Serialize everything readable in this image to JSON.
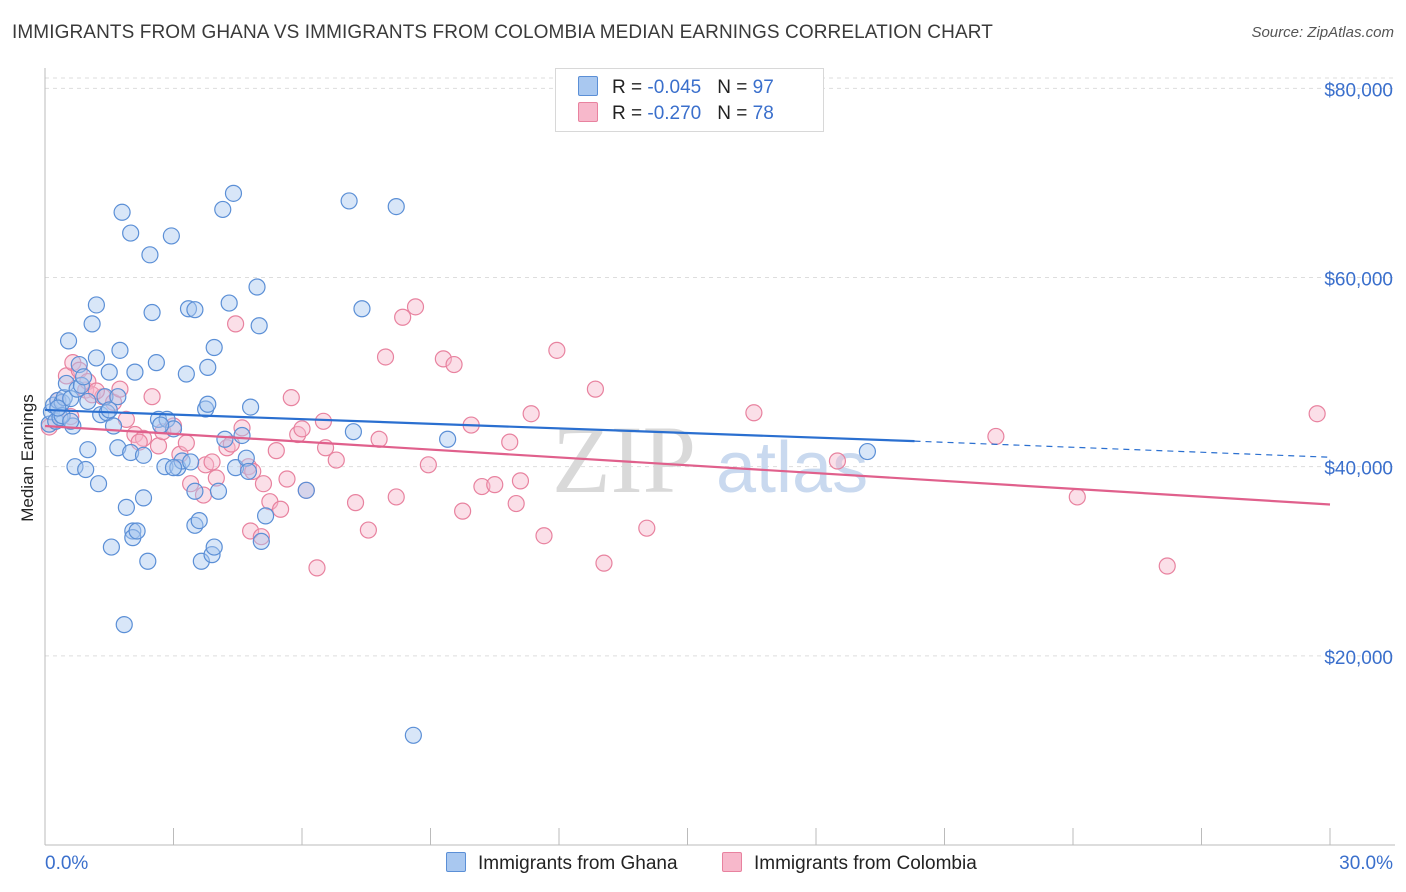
{
  "header": {
    "title": "IMMIGRANTS FROM GHANA VS IMMIGRANTS FROM COLOMBIA MEDIAN EARNINGS CORRELATION CHART",
    "source": "Source: ZipAtlas.com"
  },
  "legend": {
    "rows": [
      {
        "r_label": "R = ",
        "r_value": "-0.045",
        "n_label": "N = ",
        "n_value": "97"
      },
      {
        "r_label": "R = ",
        "r_value": "-0.270",
        "n_label": "N = ",
        "n_value": "78"
      }
    ]
  },
  "bottom_legend": {
    "ghana": "Immigrants from Ghana",
    "colombia": "Immigrants from Colombia"
  },
  "watermark": {
    "zip": "ZIP",
    "atlas": "atlas"
  },
  "colors": {
    "ghana_fill": "#a9c8f0",
    "ghana_stroke": "#5b8fd6",
    "ghana_line": "#2a6fd0",
    "colombia_fill": "#f7b8cb",
    "colombia_stroke": "#e8829f",
    "colombia_line": "#e0608c",
    "tick_label": "#3a6fcc",
    "grid": "#dddddd"
  },
  "chart_data": {
    "type": "scatter",
    "title": "IMMIGRANTS FROM GHANA VS IMMIGRANTS FROM COLOMBIA MEDIAN EARNINGS CORRELATION CHART",
    "xlabel": "",
    "ylabel": "Median Earnings",
    "xlim": [
      0,
      30
    ],
    "ylim": [
      0,
      83000
    ],
    "x_tick_labels": [
      "0.0%",
      "30.0%"
    ],
    "y_ticks": [
      20000,
      40000,
      60000,
      80000
    ],
    "y_tick_labels": [
      "$20,000",
      "$40,000",
      "$60,000",
      "$80,000"
    ],
    "grid": true,
    "legend_position": "top-center",
    "series": [
      {
        "name": "Immigrants from Ghana",
        "r": -0.045,
        "n": 97,
        "trend": {
          "x": [
            0,
            20.3
          ],
          "y": [
            46000,
            42700
          ],
          "dashed_to_x": 30,
          "dashed_to_y": 41000
        },
        "points": [
          [
            0.1,
            44500
          ],
          [
            0.15,
            45800
          ],
          [
            0.2,
            46500
          ],
          [
            0.25,
            44800
          ],
          [
            0.3,
            47000
          ],
          [
            0.35,
            45200
          ],
          [
            0.4,
            46800
          ],
          [
            0.45,
            47300
          ],
          [
            0.5,
            48800
          ],
          [
            0.55,
            53300
          ],
          [
            0.6,
            47200
          ],
          [
            0.65,
            44300
          ],
          [
            0.7,
            40000
          ],
          [
            0.75,
            48200
          ],
          [
            0.8,
            50800
          ],
          [
            0.85,
            48600
          ],
          [
            0.9,
            49500
          ],
          [
            0.95,
            39700
          ],
          [
            1.0,
            41800
          ],
          [
            1.1,
            55100
          ],
          [
            1.2,
            51500
          ],
          [
            1.2,
            57100
          ],
          [
            1.25,
            38200
          ],
          [
            1.3,
            45500
          ],
          [
            1.4,
            47400
          ],
          [
            1.45,
            45700
          ],
          [
            1.5,
            50000
          ],
          [
            1.55,
            31500
          ],
          [
            1.6,
            44300
          ],
          [
            1.7,
            47400
          ],
          [
            1.7,
            42000
          ],
          [
            1.75,
            52300
          ],
          [
            1.8,
            66900
          ],
          [
            1.85,
            23300
          ],
          [
            1.9,
            35700
          ],
          [
            2.0,
            64700
          ],
          [
            2.0,
            41500
          ],
          [
            2.05,
            33200
          ],
          [
            2.05,
            32500
          ],
          [
            2.1,
            50000
          ],
          [
            2.15,
            33200
          ],
          [
            2.3,
            36700
          ],
          [
            2.3,
            41200
          ],
          [
            2.4,
            30000
          ],
          [
            2.45,
            62400
          ],
          [
            2.5,
            56300
          ],
          [
            2.6,
            51000
          ],
          [
            2.65,
            45000
          ],
          [
            2.8,
            40000
          ],
          [
            2.85,
            45000
          ],
          [
            2.95,
            64400
          ],
          [
            3.0,
            44000
          ],
          [
            3.1,
            39900
          ],
          [
            3.2,
            40600
          ],
          [
            3.3,
            49800
          ],
          [
            3.35,
            56700
          ],
          [
            3.4,
            40500
          ],
          [
            3.5,
            33800
          ],
          [
            3.5,
            37400
          ],
          [
            3.5,
            56600
          ],
          [
            3.6,
            34300
          ],
          [
            3.65,
            30000
          ],
          [
            3.75,
            46100
          ],
          [
            3.8,
            46600
          ],
          [
            3.8,
            50500
          ],
          [
            3.9,
            30700
          ],
          [
            3.95,
            31500
          ],
          [
            3.95,
            52600
          ],
          [
            4.05,
            37400
          ],
          [
            4.15,
            67200
          ],
          [
            4.2,
            42900
          ],
          [
            4.3,
            57300
          ],
          [
            4.4,
            68900
          ],
          [
            4.45,
            39900
          ],
          [
            4.7,
            40900
          ],
          [
            4.75,
            39500
          ],
          [
            4.8,
            46300
          ],
          [
            4.95,
            59000
          ],
          [
            5.0,
            54900
          ],
          [
            5.05,
            32100
          ],
          [
            5.15,
            34800
          ],
          [
            6.1,
            37500
          ],
          [
            7.1,
            68100
          ],
          [
            7.4,
            56700
          ],
          [
            7.2,
            43700
          ],
          [
            8.2,
            67500
          ],
          [
            8.6,
            11600
          ],
          [
            9.4,
            42900
          ],
          [
            19.2,
            41600
          ],
          [
            0.4,
            45400
          ],
          [
            0.6,
            44800
          ],
          [
            0.3,
            46200
          ],
          [
            1.0,
            46900
          ],
          [
            2.7,
            44400
          ],
          [
            3.0,
            39900
          ],
          [
            4.6,
            43300
          ],
          [
            1.5,
            46000
          ]
        ]
      },
      {
        "name": "Immigrants from Colombia",
        "r": -0.27,
        "n": 78,
        "trend": {
          "x": [
            0,
            30
          ],
          "y": [
            44300,
            36000
          ]
        },
        "points": [
          [
            0.1,
            44200
          ],
          [
            0.3,
            47000
          ],
          [
            0.5,
            49600
          ],
          [
            0.6,
            45300
          ],
          [
            0.65,
            51000
          ],
          [
            0.8,
            50200
          ],
          [
            0.95,
            48100
          ],
          [
            1.0,
            49000
          ],
          [
            1.1,
            47600
          ],
          [
            1.35,
            47400
          ],
          [
            1.6,
            46800
          ],
          [
            1.75,
            48200
          ],
          [
            1.9,
            45000
          ],
          [
            2.1,
            43400
          ],
          [
            2.3,
            43000
          ],
          [
            2.5,
            47400
          ],
          [
            2.65,
            42200
          ],
          [
            2.75,
            43700
          ],
          [
            3.0,
            44300
          ],
          [
            3.15,
            41300
          ],
          [
            3.3,
            42500
          ],
          [
            3.4,
            38200
          ],
          [
            3.7,
            37000
          ],
          [
            3.75,
            40200
          ],
          [
            3.9,
            40500
          ],
          [
            4.0,
            38800
          ],
          [
            4.25,
            42000
          ],
          [
            4.35,
            42400
          ],
          [
            4.45,
            55100
          ],
          [
            4.6,
            44100
          ],
          [
            4.75,
            40000
          ],
          [
            4.8,
            33200
          ],
          [
            4.85,
            39500
          ],
          [
            5.05,
            32600
          ],
          [
            5.1,
            38200
          ],
          [
            5.25,
            36300
          ],
          [
            5.4,
            41700
          ],
          [
            5.5,
            35500
          ],
          [
            5.65,
            38700
          ],
          [
            5.75,
            47300
          ],
          [
            5.9,
            43400
          ],
          [
            6.0,
            44000
          ],
          [
            6.1,
            37500
          ],
          [
            6.35,
            29300
          ],
          [
            6.5,
            44800
          ],
          [
            6.55,
            42000
          ],
          [
            6.8,
            40700
          ],
          [
            7.25,
            36200
          ],
          [
            7.55,
            33300
          ],
          [
            7.8,
            42900
          ],
          [
            7.95,
            51600
          ],
          [
            8.2,
            36800
          ],
          [
            8.35,
            55800
          ],
          [
            8.65,
            56900
          ],
          [
            8.95,
            40200
          ],
          [
            9.3,
            51400
          ],
          [
            9.55,
            50800
          ],
          [
            9.75,
            35300
          ],
          [
            9.95,
            44400
          ],
          [
            10.2,
            37900
          ],
          [
            10.5,
            38100
          ],
          [
            10.85,
            42600
          ],
          [
            11.0,
            36100
          ],
          [
            11.1,
            38500
          ],
          [
            11.35,
            45600
          ],
          [
            11.65,
            32700
          ],
          [
            11.95,
            52300
          ],
          [
            12.85,
            48200
          ],
          [
            13.05,
            29800
          ],
          [
            14.05,
            33500
          ],
          [
            16.55,
            45700
          ],
          [
            18.5,
            40600
          ],
          [
            22.2,
            43200
          ],
          [
            24.1,
            36800
          ],
          [
            26.2,
            29500
          ],
          [
            29.7,
            45600
          ],
          [
            1.2,
            48000
          ],
          [
            2.2,
            42600
          ]
        ]
      }
    ]
  }
}
